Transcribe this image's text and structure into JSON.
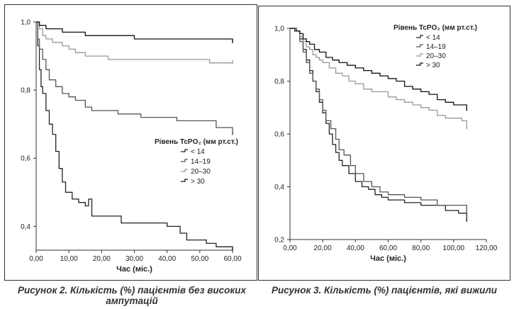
{
  "chart_data": [
    {
      "type": "line",
      "step": true,
      "caption": "Рисунок 2. Кількість (%) пацієнтів без високих ампутацій",
      "xlabel": "Час (міс.)",
      "ylabel": "",
      "xlim": [
        0,
        60
      ],
      "ylim": [
        0.33,
        1.0
      ],
      "x_ticks": [
        "0,00",
        "10,00",
        "20,00",
        "30,00",
        "40,00",
        "50,00",
        "60,00"
      ],
      "x_tick_values": [
        0,
        10,
        20,
        30,
        40,
        50,
        60
      ],
      "y_ticks": [
        "0,4",
        "0,6",
        "0,8",
        "1,0"
      ],
      "y_tick_values": [
        0.4,
        0.6,
        0.8,
        1.0
      ],
      "legend_title": "Рівень TcPO₂ (мм рт.ст.)",
      "legend_position": "right-middle",
      "series": [
        {
          "name": "< 14",
          "color": "#222222",
          "points": [
            [
              0,
              1.0
            ],
            [
              0.5,
              0.93
            ],
            [
              1,
              0.86
            ],
            [
              1.5,
              0.81
            ],
            [
              2,
              0.79
            ],
            [
              3,
              0.74
            ],
            [
              4,
              0.7
            ],
            [
              5,
              0.67
            ],
            [
              6,
              0.62
            ],
            [
              7,
              0.57
            ],
            [
              8,
              0.53
            ],
            [
              9,
              0.5
            ],
            [
              11,
              0.48
            ],
            [
              13,
              0.47
            ],
            [
              15,
              0.46
            ],
            [
              16,
              0.48
            ],
            [
              17,
              0.43
            ],
            [
              20,
              0.43
            ],
            [
              26,
              0.41
            ],
            [
              40,
              0.4
            ],
            [
              44,
              0.38
            ],
            [
              46,
              0.36
            ],
            [
              52,
              0.35
            ],
            [
              55,
              0.34
            ],
            [
              60,
              0.33
            ]
          ]
        },
        {
          "name": "14–19",
          "color": "#555555",
          "points": [
            [
              0,
              1.0
            ],
            [
              0.5,
              0.95
            ],
            [
              1,
              0.92
            ],
            [
              2,
              0.89
            ],
            [
              3,
              0.86
            ],
            [
              4,
              0.83
            ],
            [
              6,
              0.81
            ],
            [
              8,
              0.79
            ],
            [
              10,
              0.78
            ],
            [
              12,
              0.77
            ],
            [
              15,
              0.75
            ],
            [
              17,
              0.74
            ],
            [
              25,
              0.73
            ],
            [
              32,
              0.72
            ],
            [
              43,
              0.71
            ],
            [
              55,
              0.69
            ],
            [
              60,
              0.67
            ]
          ]
        },
        {
          "name": "20–30",
          "color": "#999999",
          "points": [
            [
              0,
              1.0
            ],
            [
              1,
              0.98
            ],
            [
              2,
              0.96
            ],
            [
              3,
              0.95
            ],
            [
              5,
              0.94
            ],
            [
              8,
              0.93
            ],
            [
              10,
              0.92
            ],
            [
              12,
              0.91
            ],
            [
              15,
              0.9
            ],
            [
              18,
              0.9
            ],
            [
              22,
              0.89
            ],
            [
              30,
              0.89
            ],
            [
              40,
              0.89
            ],
            [
              45,
              0.89
            ],
            [
              53,
              0.88
            ],
            [
              60,
              0.88
            ]
          ]
        },
        {
          "name": "> 30",
          "color": "#111111",
          "points": [
            [
              0,
              1.0
            ],
            [
              1,
              0.99
            ],
            [
              3,
              0.98
            ],
            [
              5,
              0.98
            ],
            [
              8,
              0.97
            ],
            [
              15,
              0.96
            ],
            [
              20,
              0.96
            ],
            [
              30,
              0.95
            ],
            [
              40,
              0.95
            ],
            [
              50,
              0.95
            ],
            [
              60,
              0.94
            ]
          ]
        }
      ]
    },
    {
      "type": "line",
      "step": true,
      "caption": "Рисунок 3. Кількість (%) пацієнтів, які вижили",
      "xlabel": "Час (міс.)",
      "ylabel": "",
      "xlim": [
        0,
        120
      ],
      "ylim": [
        0.2,
        1.0
      ],
      "x_ticks": [
        "0,00",
        "20,00",
        "40,00",
        "60,00",
        "80,00",
        "100,00",
        "120,00"
      ],
      "x_tick_values": [
        0,
        20,
        40,
        60,
        80,
        100,
        120
      ],
      "y_ticks": [
        "0,2",
        "0,4",
        "0,6",
        "0,8",
        "1,0"
      ],
      "y_tick_values": [
        0.2,
        0.4,
        0.6,
        0.8,
        1.0
      ],
      "legend_title": "Рівень TcPO₂ (мм рт.ст.)",
      "legend_position": "top-right",
      "series": [
        {
          "name": "< 14",
          "color": "#222222",
          "points": [
            [
              0,
              1.0
            ],
            [
              4,
              0.99
            ],
            [
              6,
              0.96
            ],
            [
              8,
              0.92
            ],
            [
              10,
              0.88
            ],
            [
              12,
              0.84
            ],
            [
              14,
              0.8
            ],
            [
              16,
              0.76
            ],
            [
              18,
              0.72
            ],
            [
              20,
              0.68
            ],
            [
              22,
              0.64
            ],
            [
              24,
              0.6
            ],
            [
              26,
              0.56
            ],
            [
              28,
              0.53
            ],
            [
              30,
              0.5
            ],
            [
              32,
              0.48
            ],
            [
              36,
              0.45
            ],
            [
              40,
              0.42
            ],
            [
              44,
              0.4
            ],
            [
              48,
              0.39
            ],
            [
              52,
              0.37
            ],
            [
              56,
              0.36
            ],
            [
              60,
              0.35
            ],
            [
              70,
              0.34
            ],
            [
              80,
              0.33
            ],
            [
              95,
              0.31
            ],
            [
              103,
              0.3
            ],
            [
              108,
              0.27
            ]
          ]
        },
        {
          "name": "14–19",
          "color": "#555555",
          "points": [
            [
              0,
              1.0
            ],
            [
              4,
              0.99
            ],
            [
              6,
              0.95
            ],
            [
              8,
              0.91
            ],
            [
              10,
              0.87
            ],
            [
              12,
              0.83
            ],
            [
              14,
              0.8
            ],
            [
              16,
              0.77
            ],
            [
              18,
              0.73
            ],
            [
              20,
              0.69
            ],
            [
              22,
              0.65
            ],
            [
              25,
              0.62
            ],
            [
              28,
              0.58
            ],
            [
              30,
              0.54
            ],
            [
              33,
              0.52
            ],
            [
              37,
              0.48
            ],
            [
              40,
              0.45
            ],
            [
              45,
              0.42
            ],
            [
              50,
              0.4
            ],
            [
              55,
              0.38
            ],
            [
              60,
              0.37
            ],
            [
              70,
              0.36
            ],
            [
              80,
              0.35
            ],
            [
              90,
              0.33
            ],
            [
              100,
              0.33
            ],
            [
              108,
              0.3
            ]
          ]
        },
        {
          "name": "20–30",
          "color": "#999999",
          "points": [
            [
              0,
              1.0
            ],
            [
              3,
              0.99
            ],
            [
              6,
              0.97
            ],
            [
              8,
              0.95
            ],
            [
              10,
              0.93
            ],
            [
              12,
              0.92
            ],
            [
              14,
              0.9
            ],
            [
              16,
              0.89
            ],
            [
              18,
              0.88
            ],
            [
              20,
              0.87
            ],
            [
              24,
              0.85
            ],
            [
              28,
              0.83
            ],
            [
              32,
              0.82
            ],
            [
              36,
              0.8
            ],
            [
              40,
              0.79
            ],
            [
              45,
              0.77
            ],
            [
              50,
              0.76
            ],
            [
              60,
              0.74
            ],
            [
              65,
              0.73
            ],
            [
              70,
              0.72
            ],
            [
              75,
              0.71
            ],
            [
              80,
              0.7
            ],
            [
              85,
              0.69
            ],
            [
              90,
              0.67
            ],
            [
              95,
              0.66
            ],
            [
              100,
              0.66
            ],
            [
              105,
              0.65
            ],
            [
              108,
              0.62
            ]
          ]
        },
        {
          "name": "> 30",
          "color": "#111111",
          "points": [
            [
              0,
              1.0
            ],
            [
              3,
              0.99
            ],
            [
              6,
              0.98
            ],
            [
              8,
              0.96
            ],
            [
              10,
              0.95
            ],
            [
              12,
              0.94
            ],
            [
              15,
              0.92
            ],
            [
              18,
              0.91
            ],
            [
              22,
              0.89
            ],
            [
              26,
              0.88
            ],
            [
              30,
              0.87
            ],
            [
              35,
              0.86
            ],
            [
              40,
              0.85
            ],
            [
              45,
              0.84
            ],
            [
              50,
              0.83
            ],
            [
              55,
              0.82
            ],
            [
              60,
              0.81
            ],
            [
              65,
              0.8
            ],
            [
              70,
              0.78
            ],
            [
              75,
              0.77
            ],
            [
              80,
              0.76
            ],
            [
              85,
              0.75
            ],
            [
              90,
              0.73
            ],
            [
              95,
              0.72
            ],
            [
              100,
              0.71
            ],
            [
              105,
              0.71
            ],
            [
              108,
              0.69
            ]
          ]
        }
      ]
    }
  ]
}
